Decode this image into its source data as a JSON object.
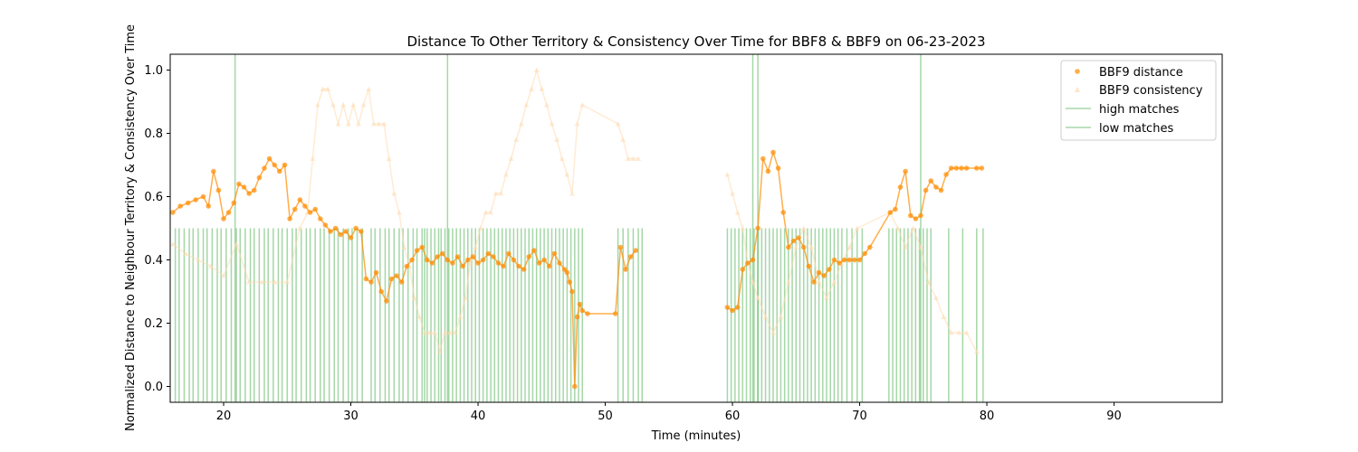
{
  "chart_data": {
    "type": "line",
    "title": "Distance To Other Territory & Consistency Over Time for BBF8 & BBF9 on 06-23-2023",
    "xlabel": "Time (minutes)",
    "ylabel": "Normalized Distance to Neighbour Territory & Consistency Over Time",
    "xlim": [
      15.8,
      98.5
    ],
    "ylim": [
      -0.05,
      1.05
    ],
    "xticks": [
      20,
      30,
      40,
      50,
      60,
      70,
      80,
      90
    ],
    "yticks": [
      0.0,
      0.2,
      0.4,
      0.6,
      0.8,
      1.0
    ],
    "grid": false,
    "legend_position": "top-right",
    "colors": {
      "distance": "#ff8c00",
      "consistency": "#ffdab0",
      "matches": "#4caf50"
    },
    "series": [
      {
        "name": "BBF9 distance",
        "marker": "circle",
        "x": [
          16.0,
          16.6,
          17.2,
          17.8,
          18.4,
          18.8,
          19.2,
          19.6,
          20.0,
          20.4,
          20.8,
          21.2,
          21.6,
          22.0,
          22.4,
          22.8,
          23.2,
          23.6,
          24.0,
          24.4,
          24.8,
          25.2,
          25.6,
          26.0,
          26.4,
          26.8,
          27.2,
          27.6,
          28.0,
          28.4,
          28.8,
          29.2,
          29.6,
          30.0,
          30.4,
          30.8,
          31.2,
          31.6,
          32.0,
          32.4,
          32.8,
          33.2,
          33.6,
          34.0,
          34.4,
          34.8,
          35.2,
          35.6,
          36.0,
          36.4,
          36.8,
          37.2,
          37.6,
          38.0,
          38.4,
          38.8,
          39.2,
          39.6,
          40.0,
          40.4,
          40.8,
          41.2,
          41.6,
          42.0,
          42.4,
          42.8,
          43.2,
          43.6,
          44.0,
          44.4,
          44.8,
          45.2,
          45.6,
          46.0,
          46.4,
          46.8,
          47.0,
          47.2,
          47.4,
          47.6,
          47.8,
          48.0,
          48.2,
          48.6,
          50.8,
          51.2,
          51.6,
          52.0,
          52.4,
          59.6,
          60.0,
          60.4,
          60.8,
          61.2,
          61.6,
          62.0,
          62.4,
          62.8,
          63.2,
          63.6,
          64.0,
          64.4,
          64.8,
          65.2,
          65.6,
          66.0,
          66.4,
          66.8,
          67.2,
          67.6,
          68.0,
          68.4,
          68.8,
          69.2,
          69.6,
          70.0,
          70.4,
          70.8,
          72.4,
          72.8,
          73.2,
          73.6,
          74.0,
          74.4,
          74.8,
          75.2,
          75.6,
          76.0,
          76.4,
          76.8,
          77.2,
          77.6,
          78.0,
          78.4,
          79.2,
          79.6
        ],
        "y": [
          0.55,
          0.57,
          0.58,
          0.59,
          0.6,
          0.57,
          0.68,
          0.62,
          0.53,
          0.55,
          0.58,
          0.64,
          0.63,
          0.61,
          0.62,
          0.66,
          0.69,
          0.72,
          0.7,
          0.68,
          0.7,
          0.53,
          0.56,
          0.59,
          0.57,
          0.55,
          0.56,
          0.53,
          0.51,
          0.49,
          0.5,
          0.48,
          0.49,
          0.47,
          0.5,
          0.49,
          0.34,
          0.33,
          0.36,
          0.3,
          0.27,
          0.34,
          0.35,
          0.33,
          0.38,
          0.4,
          0.43,
          0.44,
          0.4,
          0.39,
          0.41,
          0.42,
          0.4,
          0.39,
          0.41,
          0.38,
          0.4,
          0.41,
          0.39,
          0.4,
          0.42,
          0.41,
          0.39,
          0.38,
          0.42,
          0.4,
          0.38,
          0.37,
          0.41,
          0.43,
          0.39,
          0.4,
          0.38,
          0.42,
          0.39,
          0.37,
          0.36,
          0.33,
          0.3,
          0.0,
          0.22,
          0.26,
          0.24,
          0.23,
          0.23,
          0.44,
          0.37,
          0.41,
          0.43,
          0.25,
          0.24,
          0.25,
          0.37,
          0.39,
          0.4,
          0.5,
          0.72,
          0.68,
          0.74,
          0.69,
          0.55,
          0.44,
          0.46,
          0.47,
          0.44,
          0.38,
          0.33,
          0.36,
          0.35,
          0.37,
          0.4,
          0.39,
          0.4,
          0.4,
          0.4,
          0.4,
          0.42,
          0.44,
          0.55,
          0.56,
          0.63,
          0.68,
          0.54,
          0.53,
          0.54,
          0.62,
          0.65,
          0.63,
          0.62,
          0.67,
          0.69,
          0.69,
          0.69,
          0.69,
          0.69,
          0.69
        ]
      },
      {
        "name": "BBF9 consistency",
        "marker": "triangle",
        "x": [
          16.0,
          17.0,
          18.0,
          19.0,
          20.0,
          21.0,
          22.0,
          23.0,
          24.0,
          25.0,
          26.0,
          26.6,
          27.0,
          27.4,
          27.8,
          28.2,
          28.6,
          29.0,
          29.4,
          29.8,
          30.2,
          30.6,
          31.0,
          31.4,
          31.8,
          32.2,
          32.6,
          33.0,
          33.4,
          33.8,
          34.2,
          34.6,
          35.0,
          35.4,
          35.8,
          36.2,
          36.6,
          37.0,
          37.4,
          37.8,
          38.2,
          38.6,
          39.0,
          39.4,
          39.8,
          40.2,
          40.6,
          41.0,
          41.4,
          41.8,
          42.2,
          42.6,
          43.0,
          43.4,
          43.8,
          44.2,
          44.6,
          45.0,
          45.4,
          45.8,
          46.2,
          46.6,
          47.0,
          47.4,
          47.8,
          48.2,
          51.0,
          51.4,
          51.8,
          52.2,
          52.6,
          59.6,
          60.0,
          60.4,
          60.8,
          61.2,
          61.6,
          62.0,
          62.6,
          63.2,
          63.8,
          64.4,
          65.0,
          65.6,
          66.2,
          66.8,
          67.4,
          68.0,
          68.6,
          69.2,
          69.8,
          72.4,
          73.0,
          73.6,
          74.2,
          74.8,
          75.4,
          76.0,
          76.6,
          77.2,
          77.8,
          78.4,
          79.2
        ],
        "y": [
          0.45,
          0.42,
          0.4,
          0.38,
          0.35,
          0.45,
          0.33,
          0.33,
          0.33,
          0.33,
          0.5,
          0.55,
          0.72,
          0.89,
          0.94,
          0.94,
          0.89,
          0.83,
          0.89,
          0.83,
          0.89,
          0.83,
          0.89,
          0.94,
          0.83,
          0.83,
          0.83,
          0.72,
          0.61,
          0.55,
          0.44,
          0.38,
          0.28,
          0.22,
          0.17,
          0.17,
          0.17,
          0.11,
          0.17,
          0.17,
          0.17,
          0.22,
          0.28,
          0.39,
          0.44,
          0.5,
          0.55,
          0.55,
          0.61,
          0.61,
          0.67,
          0.72,
          0.78,
          0.83,
          0.89,
          0.94,
          1.0,
          0.94,
          0.89,
          0.83,
          0.78,
          0.72,
          0.67,
          0.61,
          0.83,
          0.89,
          0.83,
          0.78,
          0.72,
          0.72,
          0.72,
          0.67,
          0.61,
          0.55,
          0.5,
          0.39,
          0.33,
          0.28,
          0.22,
          0.17,
          0.22,
          0.33,
          0.44,
          0.5,
          0.44,
          0.33,
          0.28,
          0.33,
          0.39,
          0.44,
          0.5,
          0.55,
          0.5,
          0.44,
          0.5,
          0.44,
          0.33,
          0.28,
          0.22,
          0.17,
          0.17,
          0.17,
          0.11
        ]
      },
      {
        "name": "high matches",
        "type": "vline",
        "x": [
          20.9,
          37.6,
          61.6,
          62.0,
          74.8
        ]
      },
      {
        "name": "low matches",
        "type": "vline",
        "ymax": 0.5,
        "x": [
          16.2,
          16.5,
          16.9,
          17.3,
          17.6,
          18.0,
          18.4,
          18.7,
          19.1,
          19.5,
          19.8,
          20.2,
          20.6,
          21.0,
          21.3,
          21.7,
          22.1,
          22.4,
          22.8,
          23.2,
          23.5,
          23.9,
          24.3,
          24.6,
          25.0,
          25.4,
          25.7,
          26.1,
          26.5,
          26.8,
          27.2,
          27.6,
          27.9,
          28.3,
          28.7,
          29.0,
          29.4,
          29.8,
          30.1,
          30.5,
          30.9,
          31.6,
          31.9,
          32.3,
          32.7,
          33.0,
          33.4,
          33.8,
          34.1,
          34.5,
          34.9,
          35.2,
          35.6,
          35.8,
          36.0,
          36.3,
          36.6,
          36.9,
          37.1,
          37.4,
          37.7,
          38.0,
          38.3,
          38.6,
          38.9,
          39.2,
          39.5,
          39.8,
          40.1,
          40.4,
          40.7,
          41.0,
          41.3,
          41.6,
          41.9,
          42.2,
          42.5,
          42.8,
          43.1,
          43.4,
          43.7,
          44.0,
          44.3,
          44.6,
          44.9,
          45.2,
          45.5,
          45.8,
          46.1,
          46.4,
          46.7,
          47.0,
          47.3,
          47.6,
          47.9,
          48.2,
          51.0,
          51.4,
          51.8,
          52.2,
          52.6,
          52.9,
          59.6,
          59.9,
          60.2,
          60.5,
          60.8,
          61.1,
          61.4,
          61.7,
          62.0,
          62.3,
          62.6,
          62.9,
          63.2,
          63.5,
          63.8,
          64.1,
          64.4,
          64.7,
          65.0,
          65.3,
          65.6,
          65.9,
          66.2,
          66.5,
          66.8,
          67.1,
          67.4,
          67.7,
          68.0,
          68.3,
          68.6,
          69.0,
          69.4,
          69.8,
          70.2,
          72.3,
          72.6,
          72.9,
          73.2,
          73.5,
          73.8,
          74.1,
          74.4,
          74.7,
          75.0,
          75.3,
          75.6,
          77.0,
          78.1,
          79.2,
          79.7
        ]
      }
    ]
  }
}
